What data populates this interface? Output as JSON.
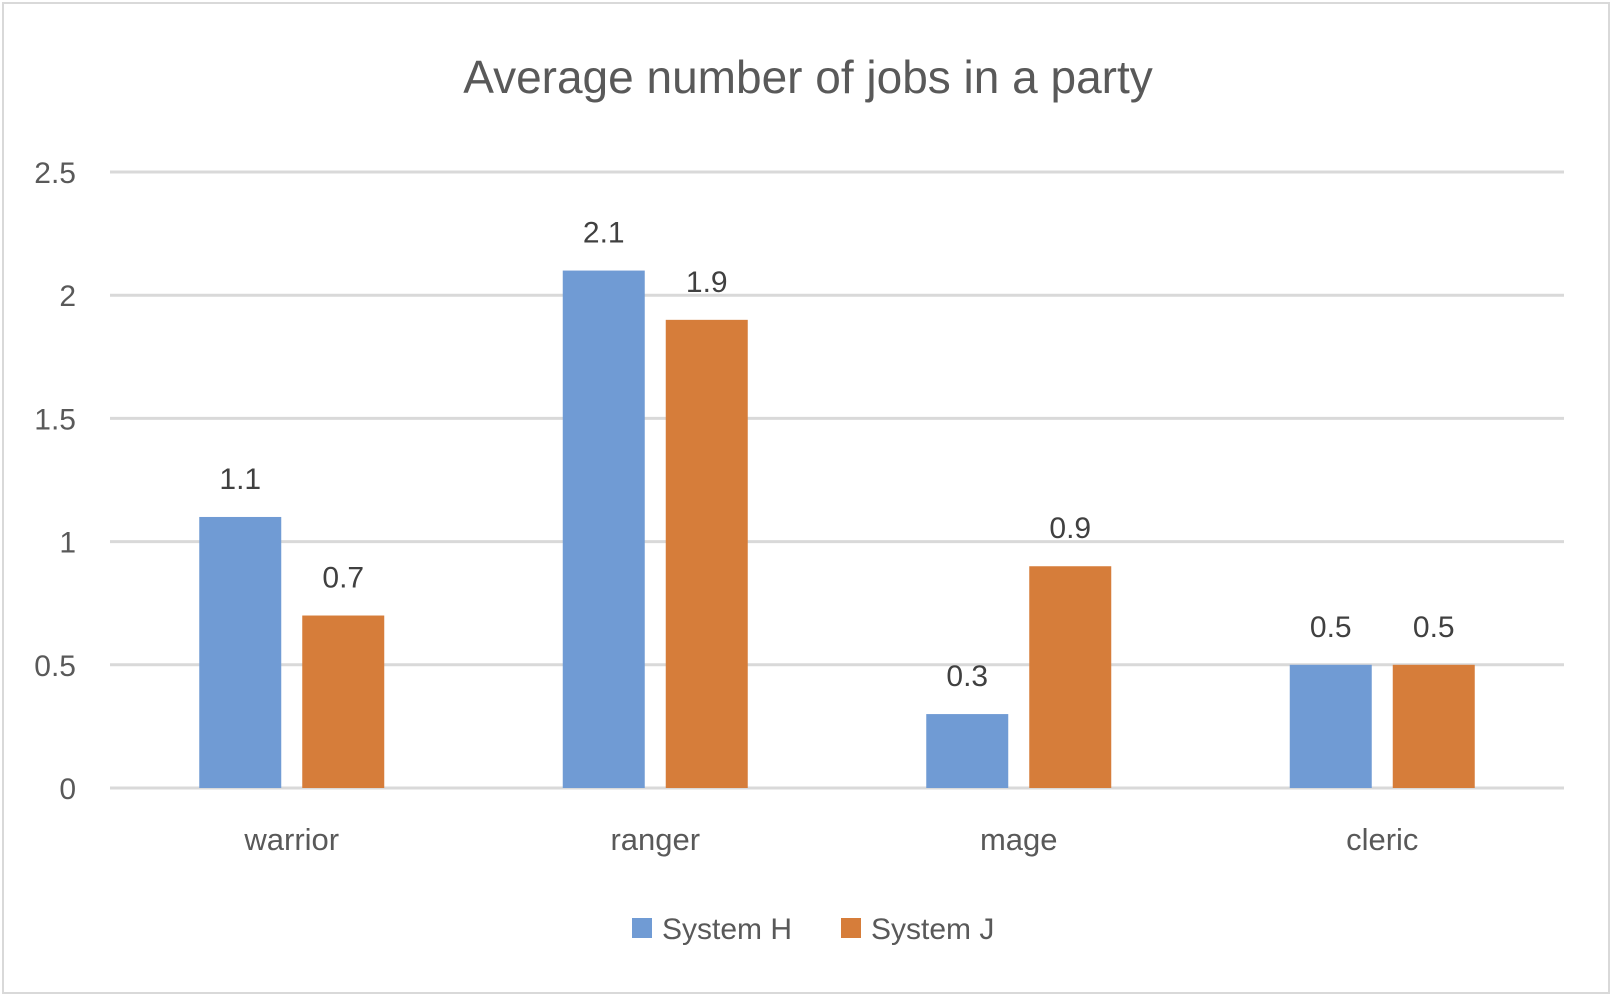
{
  "chart_data": {
    "type": "bar",
    "title": "Average number of jobs in a party",
    "categories": [
      "warrior",
      "ranger",
      "mage",
      "cleric"
    ],
    "series": [
      {
        "name": "System H",
        "values": [
          1.1,
          2.1,
          0.3,
          0.5
        ],
        "color": "#709bd4"
      },
      {
        "name": "System J",
        "values": [
          0.7,
          1.9,
          0.9,
          0.5
        ],
        "color": "#d67d3a"
      }
    ],
    "ylim": [
      0,
      2.5
    ],
    "yticks": [
      "0",
      "0.5",
      "1",
      "1.5",
      "2",
      "2.5"
    ],
    "data_labels": [
      [
        "1.1",
        "2.1",
        "0.3",
        "0.5"
      ],
      [
        "0.7",
        "1.9",
        "0.9",
        "0.5"
      ]
    ],
    "grid": true,
    "legend": "bottom"
  }
}
